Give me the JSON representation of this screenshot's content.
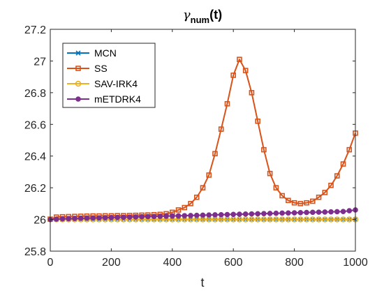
{
  "chart_data": {
    "type": "line",
    "title": {
      "symbol": "γ",
      "subscript": "num",
      "suffix": "(t)"
    },
    "xlabel": "t",
    "ylabel": "",
    "xlim": [
      0,
      1000
    ],
    "ylim": [
      25.8,
      27.2
    ],
    "xticks": [
      0,
      200,
      400,
      600,
      800,
      1000
    ],
    "yticks": [
      25.8,
      26,
      26.2,
      26.4,
      26.6,
      26.8,
      27,
      27.2
    ],
    "xtick_labels": [
      "0",
      "200",
      "400",
      "600",
      "800",
      "1000"
    ],
    "ytick_labels": [
      "25.8",
      "26",
      "26.2",
      "26.4",
      "26.6",
      "26.8",
      "27",
      "27.2"
    ],
    "grid": false,
    "legend_position": "top-left",
    "series": [
      {
        "name": "MCN",
        "color": "#0072BD",
        "marker": "x",
        "x": [
          0,
          1000
        ],
        "y": [
          26.0,
          26.0
        ]
      },
      {
        "name": "SS",
        "color": "#D95319",
        "marker": "square",
        "x": [
          0,
          20,
          40,
          60,
          80,
          100,
          120,
          140,
          160,
          180,
          200,
          220,
          240,
          260,
          280,
          300,
          320,
          340,
          360,
          380,
          400,
          420,
          440,
          460,
          480,
          500,
          520,
          540,
          560,
          580,
          600,
          620,
          640,
          660,
          680,
          700,
          720,
          740,
          760,
          780,
          800,
          820,
          840,
          860,
          880,
          900,
          920,
          940,
          960,
          980,
          1000
        ],
        "y": [
          26.002,
          26.015,
          26.017,
          26.018,
          26.019,
          26.02,
          26.021,
          26.022,
          26.022,
          26.023,
          26.023,
          26.024,
          26.024,
          26.025,
          26.026,
          26.027,
          26.028,
          26.03,
          26.032,
          26.036,
          26.045,
          26.06,
          26.075,
          26.1,
          26.14,
          26.2,
          26.28,
          26.415,
          26.57,
          26.73,
          26.91,
          27.01,
          26.94,
          26.8,
          26.62,
          26.44,
          26.29,
          26.2,
          26.15,
          26.12,
          26.105,
          26.1,
          26.105,
          26.115,
          26.14,
          26.17,
          26.215,
          26.275,
          26.35,
          26.44,
          26.545
        ]
      },
      {
        "name": "SAV-IRK4",
        "color": "#EDB120",
        "marker": "circle",
        "x": [
          0,
          20,
          40,
          60,
          80,
          100,
          120,
          140,
          160,
          180,
          200,
          220,
          240,
          260,
          280,
          300,
          320,
          340,
          360,
          380,
          400,
          420,
          440,
          460,
          480,
          500,
          520,
          540,
          560,
          580,
          600,
          620,
          640,
          660,
          680,
          700,
          720,
          740,
          760,
          780,
          800,
          820,
          840,
          860,
          880,
          900,
          920,
          940,
          960,
          980,
          1000
        ],
        "y": [
          26.0,
          26.0,
          26.0,
          26.0,
          26.0,
          26.0,
          26.0,
          26.0,
          26.0,
          26.0,
          26.0,
          26.0,
          26.0,
          26.0,
          26.0,
          26.0,
          26.0,
          26.0,
          26.0,
          26.0,
          26.0,
          26.0,
          26.0,
          26.0,
          26.0,
          26.0,
          26.0,
          26.0,
          26.0,
          26.0,
          26.0,
          26.0,
          26.0,
          26.0,
          26.0,
          26.0,
          26.0,
          26.0,
          26.0,
          26.0,
          26.0,
          26.0,
          26.0,
          26.0,
          26.0,
          26.0,
          26.0,
          26.0,
          26.0,
          26.0,
          26.0
        ]
      },
      {
        "name": "mETDRK4",
        "color": "#7E2F8E",
        "marker": "dot",
        "x": [
          0,
          20,
          40,
          60,
          80,
          100,
          120,
          140,
          160,
          180,
          200,
          220,
          240,
          260,
          280,
          300,
          320,
          340,
          360,
          380,
          400,
          420,
          440,
          460,
          480,
          500,
          520,
          540,
          560,
          580,
          600,
          620,
          640,
          660,
          680,
          700,
          720,
          740,
          760,
          780,
          800,
          820,
          840,
          860,
          880,
          900,
          920,
          940,
          960,
          980,
          1000
        ],
        "y": [
          26.0,
          26.002,
          26.004,
          26.005,
          26.006,
          26.007,
          26.008,
          26.009,
          26.01,
          26.011,
          26.012,
          26.013,
          26.014,
          26.015,
          26.016,
          26.017,
          26.018,
          26.019,
          26.02,
          26.021,
          26.022,
          26.023,
          26.024,
          26.025,
          26.026,
          26.027,
          26.028,
          26.029,
          26.03,
          26.031,
          26.032,
          26.033,
          26.034,
          26.035,
          26.036,
          26.037,
          26.038,
          26.039,
          26.04,
          26.041,
          26.042,
          26.043,
          26.044,
          26.045,
          26.046,
          26.047,
          26.048,
          26.049,
          26.05,
          26.055,
          26.06
        ]
      }
    ]
  }
}
